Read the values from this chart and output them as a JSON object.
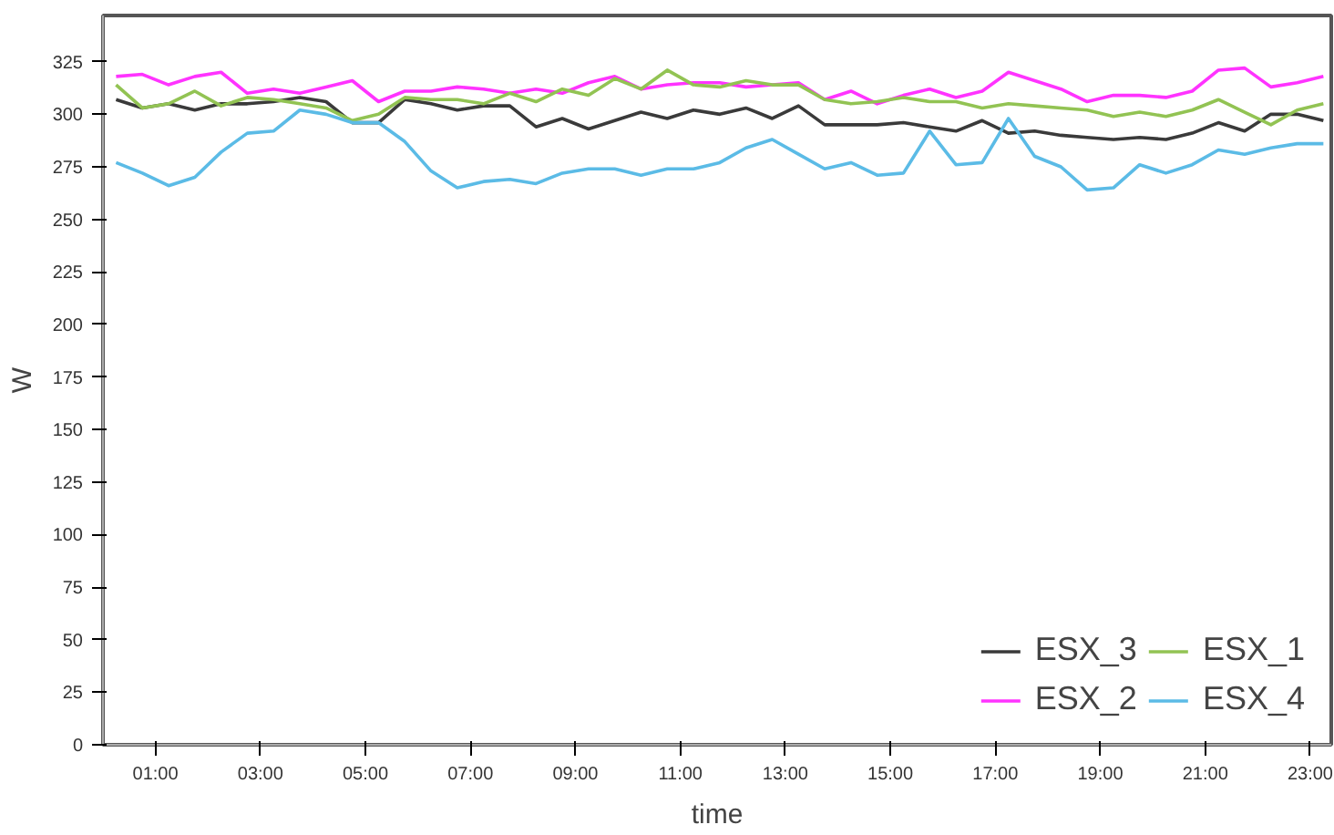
{
  "chart_data": {
    "type": "line",
    "xlabel": "time",
    "ylabel": "W",
    "x": [
      0.25,
      0.75,
      1.25,
      1.75,
      2.25,
      2.75,
      3.25,
      3.75,
      4.25,
      4.75,
      5.25,
      5.75,
      6.25,
      6.75,
      7.25,
      7.75,
      8.25,
      8.75,
      9.25,
      9.75,
      10.25,
      10.75,
      11.25,
      11.75,
      12.25,
      12.75,
      13.25,
      13.75,
      14.25,
      14.75,
      15.25,
      15.75,
      16.25,
      16.75,
      17.25,
      17.75,
      18.25,
      18.75,
      19.25,
      19.75,
      20.25,
      20.75,
      21.25,
      21.75,
      22.25,
      22.75,
      23.25
    ],
    "series": [
      {
        "name": "ESX_3",
        "color": "#3a3a3a",
        "values": [
          307,
          303,
          305,
          302,
          305,
          305,
          306,
          308,
          306,
          296,
          296,
          307,
          305,
          302,
          304,
          304,
          294,
          298,
          293,
          297,
          301,
          298,
          302,
          300,
          303,
          298,
          304,
          295,
          295,
          295,
          296,
          294,
          292,
          297,
          291,
          292,
          290,
          289,
          288,
          289,
          288,
          291,
          296,
          292,
          300,
          300,
          297
        ]
      },
      {
        "name": "ESX_2",
        "color": "#ff33ff",
        "values": [
          318,
          319,
          314,
          318,
          320,
          310,
          312,
          310,
          313,
          316,
          306,
          311,
          311,
          313,
          312,
          310,
          312,
          310,
          315,
          318,
          312,
          314,
          315,
          315,
          313,
          314,
          315,
          307,
          311,
          305,
          309,
          312,
          308,
          311,
          320,
          316,
          312,
          306,
          309,
          309,
          308,
          311,
          321,
          322,
          313,
          315,
          318
        ]
      },
      {
        "name": "ESX_1",
        "color": "#92c353",
        "values": [
          314,
          303,
          305,
          311,
          304,
          308,
          307,
          305,
          303,
          297,
          300,
          308,
          307,
          307,
          305,
          310,
          306,
          312,
          309,
          317,
          312,
          321,
          314,
          313,
          316,
          314,
          314,
          307,
          305,
          306,
          308,
          306,
          306,
          303,
          305,
          304,
          303,
          302,
          299,
          301,
          299,
          302,
          307,
          301,
          295,
          302,
          305
        ]
      },
      {
        "name": "ESX_4",
        "color": "#5bbbe6",
        "values": [
          277,
          272,
          266,
          270,
          282,
          291,
          292,
          302,
          300,
          296,
          296,
          287,
          273,
          265,
          268,
          269,
          267,
          272,
          274,
          274,
          271,
          274,
          274,
          277,
          284,
          288,
          281,
          274,
          277,
          271,
          272,
          292,
          276,
          277,
          298,
          280,
          275,
          264,
          265,
          276,
          272,
          276,
          283,
          281,
          284,
          286,
          286
        ]
      }
    ],
    "xlim": [
      0,
      23.4
    ],
    "ylim": [
      0,
      347
    ],
    "xticks": [
      {
        "value": 1,
        "label": "01:00"
      },
      {
        "value": 3,
        "label": "03:00"
      },
      {
        "value": 5,
        "label": "05:00"
      },
      {
        "value": 7,
        "label": "07:00"
      },
      {
        "value": 9,
        "label": "09:00"
      },
      {
        "value": 11,
        "label": "11:00"
      },
      {
        "value": 13,
        "label": "13:00"
      },
      {
        "value": 15,
        "label": "15:00"
      },
      {
        "value": 17,
        "label": "17:00"
      },
      {
        "value": 19,
        "label": "19:00"
      },
      {
        "value": 21,
        "label": "21:00"
      },
      {
        "value": 23,
        "label": "23:00"
      }
    ],
    "yticks": [
      0,
      25,
      50,
      75,
      100,
      125,
      150,
      175,
      200,
      225,
      250,
      275,
      300,
      325
    ],
    "legend": "bottom right",
    "grid": false,
    "line_style": "solid"
  }
}
